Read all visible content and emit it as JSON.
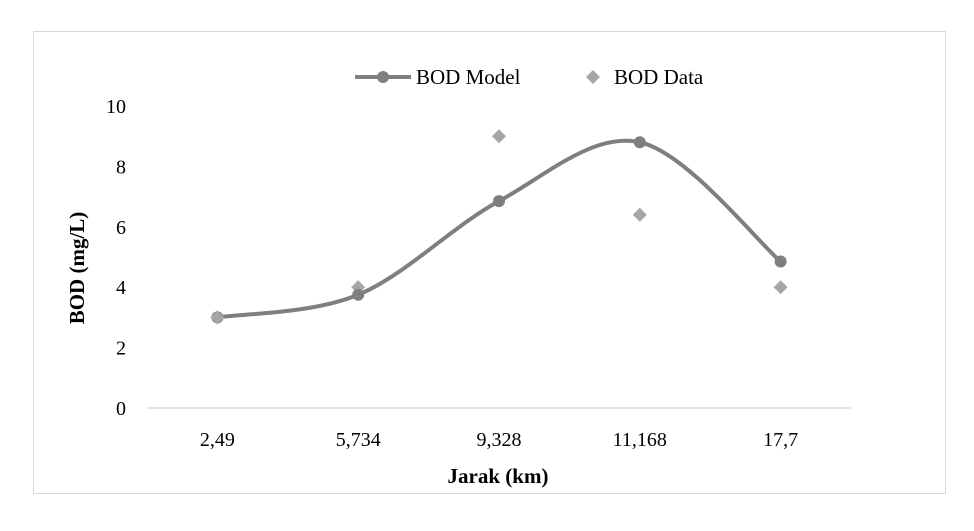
{
  "chart_data": {
    "type": "line",
    "title": "",
    "xlabel": "Jarak (km)",
    "ylabel": "BOD (mg/L)",
    "categories": [
      "2,49",
      "5,734",
      "9,328",
      "11,168",
      "17,7"
    ],
    "ylim": [
      0,
      10
    ],
    "yticks": [
      "0",
      "2",
      "4",
      "6",
      "8",
      "10"
    ],
    "grid": false,
    "legend_position": "top",
    "series": [
      {
        "name": "BOD Model",
        "style": "smooth-line-with-circle-markers",
        "color": "#7f7f7f",
        "values": [
          3.0,
          3.75,
          6.85,
          8.8,
          4.85
        ]
      },
      {
        "name": "BOD Data",
        "style": "diamond-markers",
        "color": "#a6a6a6",
        "values": [
          3.0,
          4.0,
          9.0,
          6.4,
          4.0
        ]
      }
    ]
  }
}
